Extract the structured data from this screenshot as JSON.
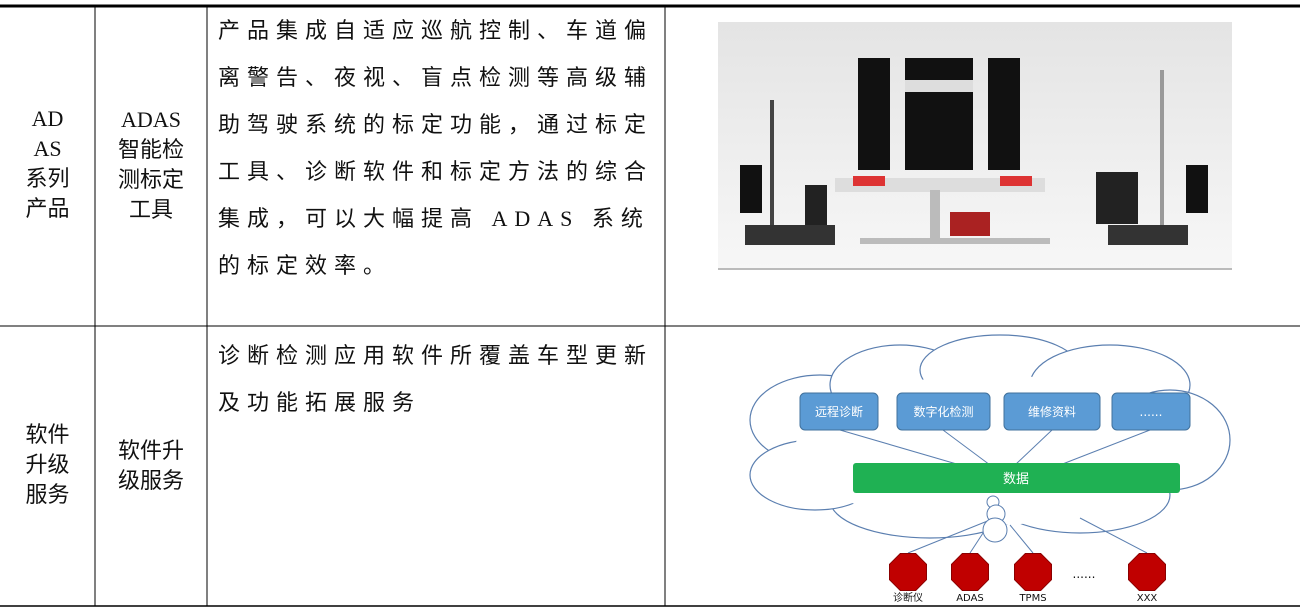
{
  "table": {
    "rows": [
      [
        "ADAS系列产品",
        "ADAS智能检测标定工具",
        "产品集成自适应巡航控制、车道偏离警告、夜视、盲点检测等高级辅助驾驶系统的标定功能，通过标定工具、诊断软件和标定方法的综合集成，可以大幅提高 ADAS 系统的标定效率。"
      ],
      [
        "软件升级服务",
        "软件升级服务",
        "诊断检测应用软件所覆盖车型更新及功能拓展服务"
      ]
    ]
  },
  "diagram": {
    "modules": [
      "远程诊断",
      "数字化检测",
      "维修资料",
      "......"
    ],
    "hub": "数据",
    "devices": [
      "诊断仪",
      "ADAS",
      "TPMS",
      "XXX"
    ],
    "ellipsis": "......"
  }
}
